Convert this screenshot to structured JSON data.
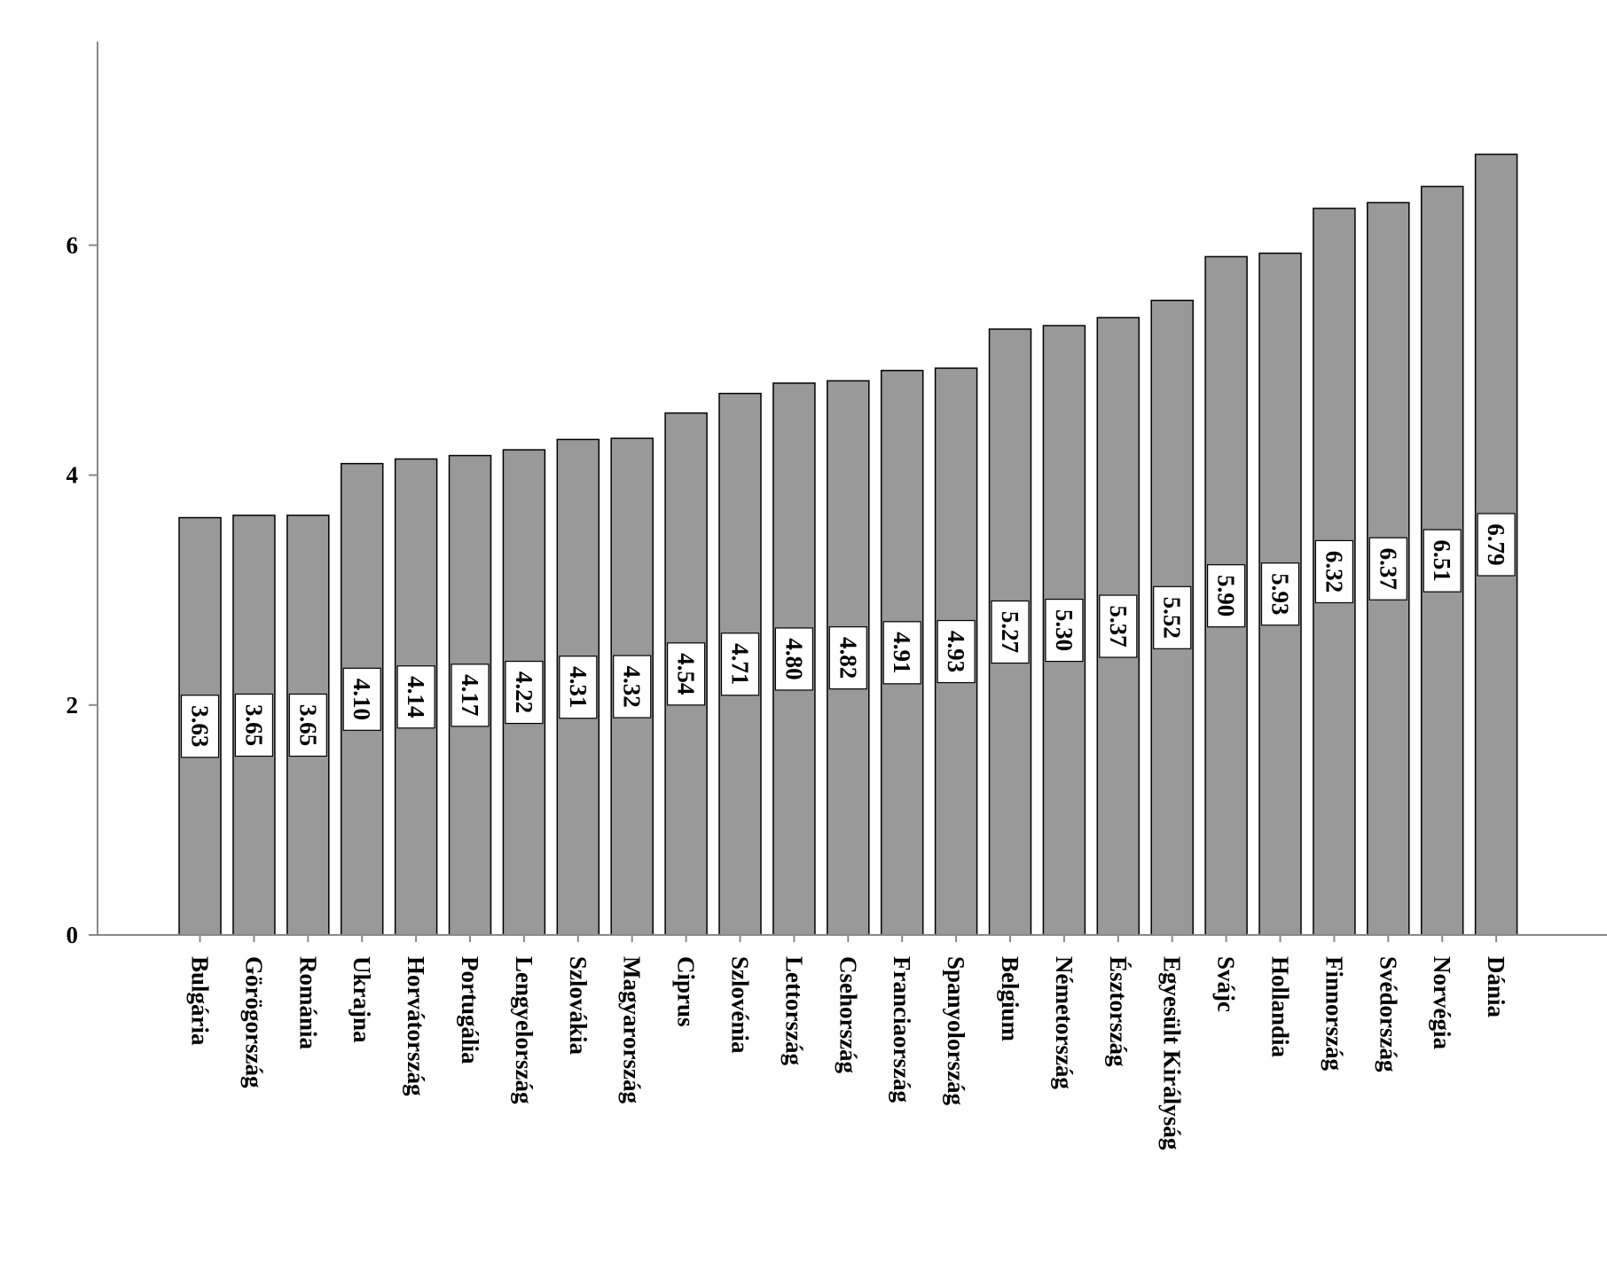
{
  "chart_data": {
    "type": "bar",
    "categories": [
      "Bulgária",
      "Görögország",
      "Románia",
      "Ukrajna",
      "Horvátország",
      "Portugália",
      "Lengyelország",
      "Szlovákia",
      "Magyarország",
      "Ciprus",
      "Szlovénia",
      "Lettország",
      "Csehország",
      "Franciaország",
      "Spanyolország",
      "Belgium",
      "Németország",
      "Észtország",
      "Egyesült Királyság",
      "Svájc",
      "Hollandia",
      "Finnország",
      "Svédország",
      "Norvégia",
      "Dánia"
    ],
    "values": [
      3.63,
      3.65,
      3.65,
      4.1,
      4.14,
      4.17,
      4.22,
      4.31,
      4.32,
      4.54,
      4.71,
      4.8,
      4.82,
      4.91,
      4.93,
      5.27,
      5.3,
      5.37,
      5.52,
      5.9,
      5.93,
      6.32,
      6.37,
      6.51,
      6.79
    ],
    "value_labels": [
      "3.63",
      "3.65",
      "3.65",
      "4.10",
      "4.14",
      "4.17",
      "4.22",
      "4.31",
      "4.32",
      "4.54",
      "4.71",
      "4.80",
      "4.82",
      "4.91",
      "4.93",
      "5.27",
      "5.30",
      "5.37",
      "5.52",
      "5.90",
      "5.93",
      "6.32",
      "6.37",
      "6.51",
      "6.79"
    ],
    "yticks": [
      0,
      2,
      4,
      6
    ],
    "ytick_labels": [
      "0",
      "2",
      "4",
      "6"
    ],
    "ylim": [
      0,
      7.75
    ],
    "title": "",
    "xlabel": "",
    "ylabel": "",
    "grid": false,
    "legend": "none",
    "colors": {
      "bar_fill": "#999999",
      "bar_stroke": "#000000",
      "label_box": "#ffffff",
      "axis": "#888888"
    }
  }
}
